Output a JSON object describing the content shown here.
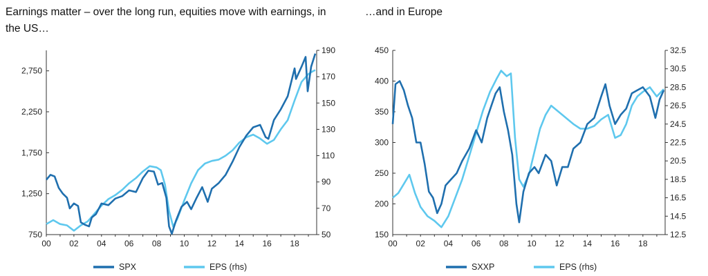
{
  "titles": {
    "left": "Earnings matter – over the long run, equities move with earnings, in the US…",
    "right": "…and in Europe"
  },
  "colors": {
    "dark": "#1f6fae",
    "light": "#5ec8ee",
    "axis": "#333333"
  },
  "chart_data": [
    {
      "type": "line",
      "title": "Earnings matter – over the long run, equities move with earnings, in the US…",
      "xlabel": "",
      "ylabel": "",
      "x_ticks": [
        "00",
        "02",
        "04",
        "06",
        "08",
        "10",
        "12",
        "14",
        "16",
        "18"
      ],
      "xlim": [
        2000,
        2019.6
      ],
      "y_left": {
        "ticks": [
          "750",
          "1,250",
          "1,750",
          "2,250",
          "2,750"
        ],
        "tick_values": [
          750,
          1250,
          1750,
          2250,
          2750
        ],
        "lim": [
          750,
          3000
        ]
      },
      "y_right": {
        "ticks": [
          "50",
          "70",
          "90",
          "110",
          "130",
          "150",
          "170",
          "190"
        ],
        "tick_values": [
          50,
          70,
          90,
          110,
          130,
          150,
          170,
          190
        ],
        "lim": [
          50,
          190
        ]
      },
      "legend": "bottom-center",
      "series": [
        {
          "name": "SPX",
          "axis": "left",
          "color": "#1f6fae",
          "x": [
            2000.0,
            2000.3,
            2000.6,
            2000.9,
            2001.2,
            2001.5,
            2001.7,
            2002.0,
            2002.3,
            2002.5,
            2002.8,
            2003.1,
            2003.3,
            2003.6,
            2004.0,
            2004.5,
            2005.0,
            2005.5,
            2006.0,
            2006.5,
            2007.0,
            2007.4,
            2007.8,
            2008.1,
            2008.4,
            2008.7,
            2008.9,
            2009.1,
            2009.4,
            2009.8,
            2010.2,
            2010.5,
            2010.9,
            2011.3,
            2011.7,
            2012.0,
            2012.5,
            2013.0,
            2013.5,
            2014.0,
            2014.5,
            2015.0,
            2015.5,
            2015.9,
            2016.1,
            2016.5,
            2017.0,
            2017.5,
            2018.0,
            2018.1,
            2018.5,
            2018.8,
            2018.95,
            2019.2,
            2019.5
          ],
          "values": [
            1420,
            1480,
            1460,
            1320,
            1250,
            1200,
            1070,
            1130,
            1100,
            900,
            870,
            850,
            960,
            1000,
            1130,
            1110,
            1190,
            1220,
            1290,
            1270,
            1440,
            1530,
            1520,
            1360,
            1380,
            1200,
            850,
            760,
            920,
            1090,
            1150,
            1060,
            1200,
            1330,
            1150,
            1310,
            1380,
            1480,
            1640,
            1820,
            1960,
            2060,
            2090,
            1940,
            1920,
            2150,
            2280,
            2440,
            2780,
            2650,
            2800,
            2920,
            2500,
            2800,
            2960
          ]
        },
        {
          "name": "EPS (rhs)",
          "axis": "right",
          "color": "#5ec8ee",
          "x": [
            2000.0,
            2000.5,
            2001.0,
            2001.5,
            2002.0,
            2002.5,
            2003.0,
            2003.5,
            2004.0,
            2004.5,
            2005.0,
            2005.5,
            2006.0,
            2006.5,
            2007.0,
            2007.5,
            2008.0,
            2008.3,
            2008.6,
            2008.9,
            2009.2,
            2009.5,
            2010.0,
            2010.5,
            2011.0,
            2011.5,
            2012.0,
            2012.5,
            2013.0,
            2013.5,
            2014.0,
            2014.5,
            2015.0,
            2015.5,
            2016.0,
            2016.5,
            2017.0,
            2017.5,
            2018.0,
            2018.5,
            2019.0,
            2019.3,
            2019.5
          ],
          "values": [
            58,
            61,
            58,
            57,
            53,
            57,
            60,
            66,
            72,
            77,
            80,
            84,
            89,
            93,
            98,
            102,
            101,
            99,
            88,
            68,
            56,
            62,
            76,
            89,
            99,
            104,
            106,
            107,
            110,
            114,
            120,
            124,
            126,
            123,
            119,
            122,
            130,
            137,
            152,
            166,
            172,
            174,
            175
          ]
        }
      ]
    },
    {
      "type": "line",
      "title": "…and in Europe",
      "xlabel": "",
      "ylabel": "",
      "x_ticks": [
        "00",
        "02",
        "04",
        "06",
        "08",
        "10",
        "12",
        "14",
        "16",
        "18"
      ],
      "xlim": [
        2000,
        2019.6
      ],
      "y_left": {
        "ticks": [
          "150",
          "200",
          "250",
          "300",
          "350",
          "400",
          "450"
        ],
        "tick_values": [
          150,
          200,
          250,
          300,
          350,
          400,
          450
        ],
        "lim": [
          150,
          450
        ]
      },
      "y_right": {
        "ticks": [
          "12.5",
          "14.5",
          "16.5",
          "18.5",
          "20.5",
          "22.5",
          "24.5",
          "26.5",
          "28.5",
          "30.5",
          "32.5"
        ],
        "tick_values": [
          12.5,
          14.5,
          16.5,
          18.5,
          20.5,
          22.5,
          24.5,
          26.5,
          28.5,
          30.5,
          32.5
        ],
        "lim": [
          12.5,
          32.5
        ]
      },
      "legend": "bottom-center",
      "series": [
        {
          "name": "SXXP",
          "axis": "left",
          "color": "#1f6fae",
          "x": [
            2000.0,
            2000.2,
            2000.5,
            2000.8,
            2001.1,
            2001.4,
            2001.7,
            2002.0,
            2002.3,
            2002.6,
            2002.9,
            2003.2,
            2003.5,
            2003.8,
            2004.2,
            2004.6,
            2005.0,
            2005.5,
            2006.0,
            2006.4,
            2006.8,
            2007.1,
            2007.4,
            2007.7,
            2008.0,
            2008.3,
            2008.6,
            2008.9,
            2009.1,
            2009.4,
            2009.8,
            2010.2,
            2010.5,
            2011.0,
            2011.4,
            2011.8,
            2012.2,
            2012.6,
            2013.0,
            2013.5,
            2014.0,
            2014.5,
            2015.0,
            2015.3,
            2015.6,
            2016.0,
            2016.4,
            2016.8,
            2017.2,
            2017.6,
            2018.0,
            2018.5,
            2018.9,
            2019.2,
            2019.5
          ],
          "values": [
            330,
            395,
            400,
            385,
            360,
            340,
            300,
            300,
            265,
            220,
            210,
            185,
            200,
            230,
            240,
            250,
            270,
            290,
            320,
            300,
            340,
            360,
            380,
            390,
            350,
            320,
            280,
            200,
            170,
            220,
            250,
            260,
            250,
            280,
            270,
            230,
            260,
            260,
            290,
            300,
            330,
            340,
            375,
            395,
            360,
            330,
            345,
            355,
            380,
            385,
            390,
            375,
            340,
            370,
            385
          ]
        },
        {
          "name": "EPS (rhs)",
          "axis": "right",
          "color": "#5ec8ee",
          "x": [
            2000.0,
            2000.4,
            2000.8,
            2001.2,
            2001.6,
            2002.0,
            2002.5,
            2003.0,
            2003.5,
            2004.0,
            2004.5,
            2005.0,
            2005.5,
            2006.0,
            2006.5,
            2007.0,
            2007.5,
            2007.8,
            2008.2,
            2008.5,
            2008.8,
            2009.1,
            2009.4,
            2009.8,
            2010.2,
            2010.6,
            2011.0,
            2011.4,
            2011.8,
            2012.2,
            2012.6,
            2013.0,
            2013.5,
            2014.0,
            2014.5,
            2015.0,
            2015.5,
            2016.0,
            2016.4,
            2016.8,
            2017.2,
            2017.6,
            2018.0,
            2018.5,
            2019.0,
            2019.5
          ],
          "values": [
            16.5,
            17.0,
            18.0,
            19.0,
            17.0,
            15.5,
            14.5,
            14.0,
            13.3,
            14.5,
            16.5,
            18.5,
            21.0,
            23.5,
            26.0,
            28.0,
            29.5,
            30.3,
            29.7,
            30.0,
            23.0,
            18.5,
            17.7,
            19.0,
            21.5,
            24.0,
            25.5,
            26.5,
            26.0,
            25.5,
            25.0,
            24.5,
            24.0,
            24.0,
            24.3,
            25.0,
            25.5,
            23.0,
            23.3,
            24.5,
            26.5,
            27.5,
            28.0,
            28.5,
            27.5,
            28.3
          ]
        }
      ]
    }
  ]
}
